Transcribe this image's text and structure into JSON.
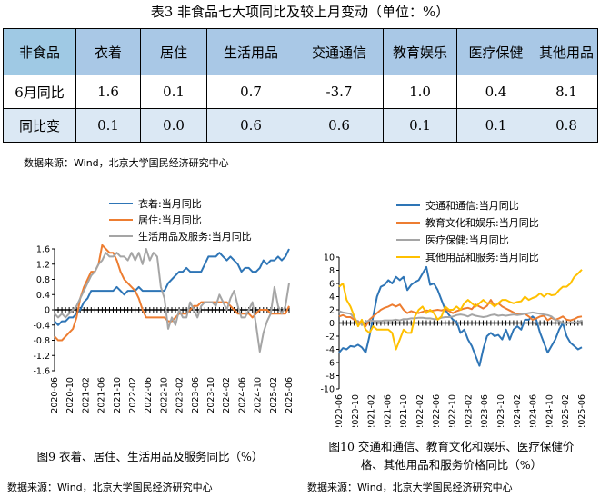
{
  "table": {
    "title": "表3  非食品七大项同比及较上月变动（单位：%）",
    "headers": [
      "非食品",
      "衣着",
      "居住",
      "生活用品",
      "交通通信",
      "教育娱乐",
      "医疗保健",
      "其他用品"
    ],
    "rows": [
      {
        "label": "6月同比",
        "values": [
          "1.6",
          "0.1",
          "0.7",
          "-3.7",
          "1.0",
          "0.4",
          "8.1"
        ]
      },
      {
        "label": "同比变",
        "values": [
          "0.1",
          "0.0",
          "0.6",
          "0.6",
          "0.1",
          "0.1",
          "0.8"
        ]
      }
    ],
    "source": "数据来源：Wind，北京大学国民经济研究中心"
  },
  "chart_data": [
    {
      "type": "line",
      "caption": "图9  衣着、居住、生活用品及服务同比（%）",
      "source": "数据来源：Wind，北京大学国民经济研究中心",
      "ylim": [
        -1.6,
        1.6
      ],
      "yticks": [
        -1.6,
        -1.2,
        -0.8,
        -0.4,
        0,
        0.4,
        0.8,
        1.2,
        1.6
      ],
      "ytick_labels": [
        "-1.6",
        "-1.2",
        "-0.8",
        "-0.4",
        "0",
        "0.4",
        "0.8",
        "1.2",
        "1.6"
      ],
      "xtick_labels": [
        "2020-06",
        "2020-10",
        "2021-02",
        "2021-06",
        "2021-10",
        "2022-02",
        "2022-06",
        "2022-10",
        "2023-02",
        "2023-06",
        "2023-10",
        "2024-02",
        "2024-06",
        "2024-10",
        "2025-02",
        "2025-06"
      ],
      "legend_position": "top-center",
      "series": [
        {
          "name": "衣着:当月同比",
          "color": "#2e75b6",
          "values": [
            -0.3,
            -0.4,
            -0.3,
            -0.3,
            -0.2,
            -0.2,
            -0.1,
            0.0,
            0.2,
            0.3,
            0.5,
            0.5,
            0.5,
            0.5,
            0.5,
            0.5,
            0.5,
            0.6,
            0.5,
            0.4,
            0.5,
            0.5,
            0.5,
            0.6,
            0.5,
            0.5,
            0.5,
            0.5,
            0.5,
            0.5,
            0.5,
            0.7,
            0.8,
            0.9,
            1.0,
            1.0,
            1.1,
            1.0,
            1.0,
            1.0,
            1.0,
            1.2,
            1.4,
            1.4,
            1.4,
            1.5,
            1.4,
            1.3,
            1.4,
            1.3,
            1.2,
            1.0,
            1.1,
            1.1,
            1.0,
            1.0,
            1.1,
            1.3,
            1.2,
            1.3,
            1.3,
            1.4,
            1.3,
            1.4,
            1.6
          ]
        },
        {
          "name": "居住:当月同比",
          "color": "#ed7d31",
          "values": [
            -0.7,
            -0.8,
            -0.8,
            -0.7,
            -0.6,
            -0.5,
            -0.2,
            0.3,
            0.6,
            0.8,
            1.0,
            1.0,
            1.2,
            1.7,
            1.6,
            1.5,
            1.5,
            1.3,
            1.0,
            0.8,
            0.7,
            0.6,
            0.5,
            0.3,
            0.0,
            -0.2,
            -0.2,
            -0.2,
            -0.2,
            -0.2,
            -0.2,
            -0.3,
            -0.3,
            -0.2,
            -0.1,
            -0.1,
            -0.1,
            0.0,
            0.1,
            0.1,
            0.2,
            0.2,
            0.2,
            0.2,
            0.2,
            0.2,
            0.2,
            0.2,
            0.1,
            0.0,
            -0.1,
            -0.1,
            -0.1,
            -0.1,
            -0.2,
            -0.1,
            0.0,
            0.0,
            0.0,
            -0.1,
            -0.1,
            -0.1,
            -0.1,
            -0.1,
            0.1
          ]
        },
        {
          "name": "生活用品及服务:当月同比",
          "color": "#a5a5a5",
          "values": [
            -0.1,
            -0.2,
            -0.1,
            -0.2,
            -0.1,
            0.0,
            0.1,
            0.3,
            0.5,
            0.7,
            0.9,
            1.0,
            1.2,
            1.3,
            1.5,
            1.4,
            1.4,
            1.5,
            1.4,
            1.4,
            1.3,
            1.5,
            1.3,
            1.5,
            1.2,
            1.6,
            1.3,
            1.5,
            1.4,
            0.6,
            0.3,
            -0.5,
            -0.2,
            -0.4,
            0.0,
            -0.2,
            -0.2,
            0.2,
            0.0,
            -0.2,
            0.1,
            0.2,
            0.2,
            0.2,
            0.1,
            0.4,
            0.2,
            0.0,
            0.3,
            0.5,
            0.1,
            -0.2,
            -0.2,
            0.0,
            0.2,
            -0.4,
            -1.1,
            -0.6,
            -0.3,
            -0.1,
            0.6,
            0.1,
            -0.1,
            0.1,
            0.7
          ]
        }
      ]
    },
    {
      "type": "line",
      "caption": "图10  交通和通信、教育文化和娱乐、医疗保健价格、其他用品和服务价格同比（%）",
      "caption_lines": [
        "图10  交通和通信、教育文化和娱乐、医疗保健价",
        "格、其他用品和服务价格同比（%）"
      ],
      "source": "数据来源：Wind，北京大学国民经济研究中心",
      "ylim": [
        -10,
        10
      ],
      "yticks": [
        -10,
        -8,
        -6,
        -4,
        -2,
        0,
        2,
        4,
        6,
        8,
        10
      ],
      "ytick_labels": [
        "-10",
        "-8",
        "-6",
        "-4",
        "-2",
        "0",
        "2",
        "4",
        "6",
        "8",
        "10"
      ],
      "xtick_labels": [
        "2020-06",
        "2020-10",
        "2021-02",
        "2021-06",
        "2021-10",
        "2022-02",
        "2022-06",
        "2022-10",
        "2023-02",
        "2023-06",
        "2023-10",
        "2024-02",
        "2024-06",
        "2024-10",
        "2025-02",
        "2025-06"
      ],
      "legend_position": "top-center",
      "series": [
        {
          "name": "交通和通信:当月同比",
          "color": "#2e75b6",
          "values": [
            -4.5,
            -3.8,
            -4.0,
            -3.5,
            -3.6,
            -3.3,
            -3.7,
            -4.5,
            -2.0,
            1.0,
            4.0,
            5.5,
            5.8,
            6.5,
            6.0,
            7.0,
            6.5,
            7.0,
            5.0,
            5.8,
            6.2,
            6.5,
            7.5,
            8.5,
            5.8,
            6.0,
            5.0,
            3.5,
            2.0,
            1.2,
            0.5,
            0.2,
            -1.5,
            -1.0,
            -2.5,
            -3.5,
            -5.0,
            -6.5,
            -4.0,
            -2.0,
            -1.5,
            -2.0,
            -1.8,
            -2.5,
            -1.0,
            -2.5,
            -1.0,
            -0.5,
            -1.0,
            0.5,
            0.5,
            1.0,
            0.5,
            -1.5,
            -3.0,
            -4.5,
            -3.5,
            -2.5,
            -1.0,
            0.0,
            -2.0,
            -3.0,
            -3.5,
            -4.0,
            -3.7
          ]
        },
        {
          "name": "教育文化和娱乐:当月同比",
          "color": "#ed7d31",
          "values": [
            1.0,
            1.2,
            0.9,
            0.9,
            0.5,
            0.2,
            0.0,
            -0.5,
            0.5,
            1.0,
            1.5,
            2.0,
            2.3,
            2.5,
            2.8,
            2.5,
            2.8,
            2.0,
            1.5,
            1.8,
            1.6,
            1.5,
            1.7,
            1.9,
            1.8,
            1.9,
            2.0,
            1.9,
            2.1,
            1.8,
            1.5,
            1.8,
            2.0,
            2.2,
            2.3,
            2.1,
            2.8,
            2.5,
            2.2,
            2.6,
            3.5,
            2.6,
            3.0,
            2.5,
            2.2,
            1.9,
            1.6,
            1.3,
            1.4,
            1.4,
            1.0,
            0.5,
            0.7,
            1.0,
            1.1,
            0.4,
            0.8,
            0.5,
            0.7,
            1.0,
            0.5,
            0.4,
            0.6,
            0.9,
            1.0
          ]
        },
        {
          "name": "医疗保健:当月同比",
          "color": "#a5a5a5",
          "values": [
            1.8,
            1.6,
            1.5,
            1.4,
            0.8,
            0.0,
            -0.2,
            0.2,
            0.4,
            0.3,
            0.3,
            0.3,
            0.4,
            0.4,
            0.4,
            0.5,
            0.4,
            0.6,
            0.6,
            0.7,
            0.7,
            0.8,
            0.8,
            0.7,
            0.7,
            0.6,
            0.6,
            0.8,
            0.9,
            0.9,
            1.0,
            1.2,
            1.3,
            1.2,
            1.0,
            1.3,
            1.1,
            1.0,
            0.9,
            1.0,
            1.2,
            1.3,
            1.1,
            1.2,
            1.1,
            1.2,
            1.3,
            1.2,
            1.3,
            1.4,
            1.5,
            1.6,
            1.5,
            1.4,
            1.3,
            1.2,
            1.0,
            0.5,
            0.3,
            0.0,
            -0.1,
            0.1,
            0.1,
            0.1,
            0.4
          ]
        },
        {
          "name": "其他用品和服务:当月同比",
          "color": "#ffc000",
          "values": [
            5.5,
            6.0,
            3.5,
            2.5,
            1.0,
            -0.5,
            0.5,
            -1.0,
            -1.5,
            -0.5,
            -1.0,
            -1.0,
            -1.0,
            -1.0,
            -1.5,
            -4.0,
            -2.5,
            -1.0,
            -1.5,
            -1.5,
            1.0,
            2.0,
            2.5,
            1.5,
            2.0,
            1.5,
            0.5,
            1.0,
            2.5,
            2.0,
            2.0,
            2.5,
            2.0,
            3.0,
            3.5,
            3.0,
            2.5,
            3.0,
            3.5,
            3.0,
            3.0,
            2.5,
            3.0,
            3.5,
            3.5,
            3.2,
            3.0,
            3.2,
            3.3,
            4.0,
            3.5,
            3.8,
            4.0,
            4.5,
            4.0,
            4.5,
            4.2,
            4.3,
            5.0,
            5.5,
            5.5,
            6.0,
            7.0,
            7.5,
            8.1
          ]
        }
      ]
    }
  ]
}
